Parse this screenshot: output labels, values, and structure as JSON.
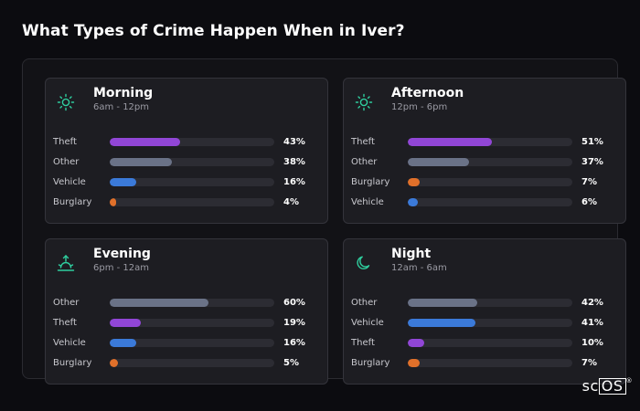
{
  "title": "What Types of Crime Happen When in Iver?",
  "colors": {
    "Theft": "#9146d6",
    "Other": "#6a7287",
    "Vehicle": "#3b7ad9",
    "Burglary": "#e0702a",
    "icon": "#2fcf9f"
  },
  "cards": [
    {
      "title": "Morning",
      "subtitle": "6am - 12pm",
      "icon": "sun-icon",
      "rows": [
        {
          "label": "Theft",
          "value": 43,
          "value_text": "43%"
        },
        {
          "label": "Other",
          "value": 38,
          "value_text": "38%"
        },
        {
          "label": "Vehicle",
          "value": 16,
          "value_text": "16%"
        },
        {
          "label": "Burglary",
          "value": 4,
          "value_text": "4%"
        }
      ]
    },
    {
      "title": "Afternoon",
      "subtitle": "12pm - 6pm",
      "icon": "sun-icon",
      "rows": [
        {
          "label": "Theft",
          "value": 51,
          "value_text": "51%"
        },
        {
          "label": "Other",
          "value": 37,
          "value_text": "37%"
        },
        {
          "label": "Burglary",
          "value": 7,
          "value_text": "7%"
        },
        {
          "label": "Vehicle",
          "value": 6,
          "value_text": "6%"
        }
      ]
    },
    {
      "title": "Evening",
      "subtitle": "6pm - 12am",
      "icon": "sunset-icon",
      "rows": [
        {
          "label": "Other",
          "value": 60,
          "value_text": "60%"
        },
        {
          "label": "Theft",
          "value": 19,
          "value_text": "19%"
        },
        {
          "label": "Vehicle",
          "value": 16,
          "value_text": "16%"
        },
        {
          "label": "Burglary",
          "value": 5,
          "value_text": "5%"
        }
      ]
    },
    {
      "title": "Night",
      "subtitle": "12am - 6am",
      "icon": "moon-icon",
      "rows": [
        {
          "label": "Other",
          "value": 42,
          "value_text": "42%"
        },
        {
          "label": "Vehicle",
          "value": 41,
          "value_text": "41%"
        },
        {
          "label": "Theft",
          "value": 10,
          "value_text": "10%"
        },
        {
          "label": "Burglary",
          "value": 7,
          "value_text": "7%"
        }
      ]
    }
  ],
  "logo": {
    "text_a": "sc",
    "text_b": "OS",
    "mark": "®"
  }
}
